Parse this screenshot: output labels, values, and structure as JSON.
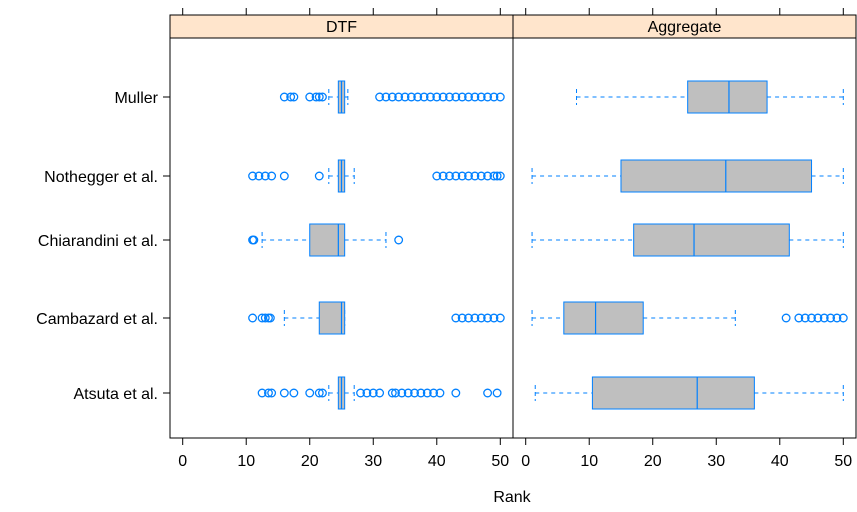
{
  "chart_data": {
    "type": "boxplot",
    "xlabel": "Rank",
    "x_ticks": [
      0,
      10,
      20,
      30,
      40,
      50
    ],
    "xlim": [
      -2,
      52
    ],
    "categories": [
      "Muller",
      "Nothegger et al.",
      "Chiarandini et al.",
      "Cambazard et al.",
      "Atsuta et al."
    ],
    "colors": {
      "strip_fill": "#ffe5cc",
      "box_fill": "#bfbfbf",
      "box_stroke": "#0080ff",
      "outlier": "#0080ff",
      "frame": "#000000"
    },
    "panels": [
      {
        "name": "DTF",
        "boxes": [
          {
            "label": "Muller",
            "whisker_low": 23,
            "q1": 24.5,
            "median": 25,
            "q3": 25.5,
            "whisker_high": 26,
            "outliers": [
              16,
              17,
              17.5,
              20,
              21,
              21.5,
              22,
              31,
              32,
              33,
              34,
              35,
              36,
              37,
              38,
              39,
              40,
              41,
              42,
              43,
              44,
              45,
              46,
              47,
              48,
              49,
              50
            ]
          },
          {
            "label": "Nothegger et al.",
            "whisker_low": 23,
            "q1": 24.5,
            "median": 25,
            "q3": 25.5,
            "whisker_high": 27,
            "outliers": [
              11,
              12,
              13,
              14,
              16,
              21.5,
              40,
              41,
              42,
              43,
              44,
              45,
              46,
              47,
              48,
              49,
              49.5,
              50
            ]
          },
          {
            "label": "Chiarandini et al.",
            "whisker_low": 12.5,
            "q1": 20,
            "median": 24.5,
            "q3": 25.5,
            "whisker_high": 32,
            "outliers": [
              11,
              11.2,
              34
            ]
          },
          {
            "label": "Cambazard et al.",
            "whisker_low": 16,
            "q1": 21.5,
            "median": 25,
            "q3": 25.5,
            "whisker_high": 25.5,
            "outliers": [
              11,
              12.5,
              13,
              13.5,
              13.8,
              43,
              44,
              45,
              46,
              47,
              48,
              49,
              50
            ]
          },
          {
            "label": "Atsuta et al.",
            "whisker_low": 23,
            "q1": 24.5,
            "median": 25,
            "q3": 25.5,
            "whisker_high": 27,
            "outliers": [
              12.5,
              13.5,
              14,
              16,
              17.5,
              20,
              21.5,
              22,
              28,
              29,
              30,
              31,
              33,
              33.5,
              34.5,
              35.5,
              36.5,
              37.5,
              38.5,
              39.5,
              40.5,
              43,
              48,
              49.5
            ]
          }
        ]
      },
      {
        "name": "Aggregate",
        "boxes": [
          {
            "label": "Muller",
            "whisker_low": 8,
            "q1": 25.5,
            "median": 32,
            "q3": 38,
            "whisker_high": 50,
            "outliers": []
          },
          {
            "label": "Nothegger et al.",
            "whisker_low": 1,
            "q1": 15,
            "median": 31.5,
            "q3": 45,
            "whisker_high": 50,
            "outliers": []
          },
          {
            "label": "Chiarandini et al.",
            "whisker_low": 1,
            "q1": 17,
            "median": 26.5,
            "q3": 41.5,
            "whisker_high": 50,
            "outliers": []
          },
          {
            "label": "Cambazard et al.",
            "whisker_low": 1,
            "q1": 6,
            "median": 11,
            "q3": 18.5,
            "whisker_high": 33,
            "outliers": [
              41,
              43,
              44,
              45,
              46,
              47,
              48,
              49,
              50
            ]
          },
          {
            "label": "Atsuta et al.",
            "whisker_low": 1.5,
            "q1": 10.5,
            "median": 27,
            "q3": 36,
            "whisker_high": 50,
            "outliers": []
          }
        ]
      }
    ]
  }
}
